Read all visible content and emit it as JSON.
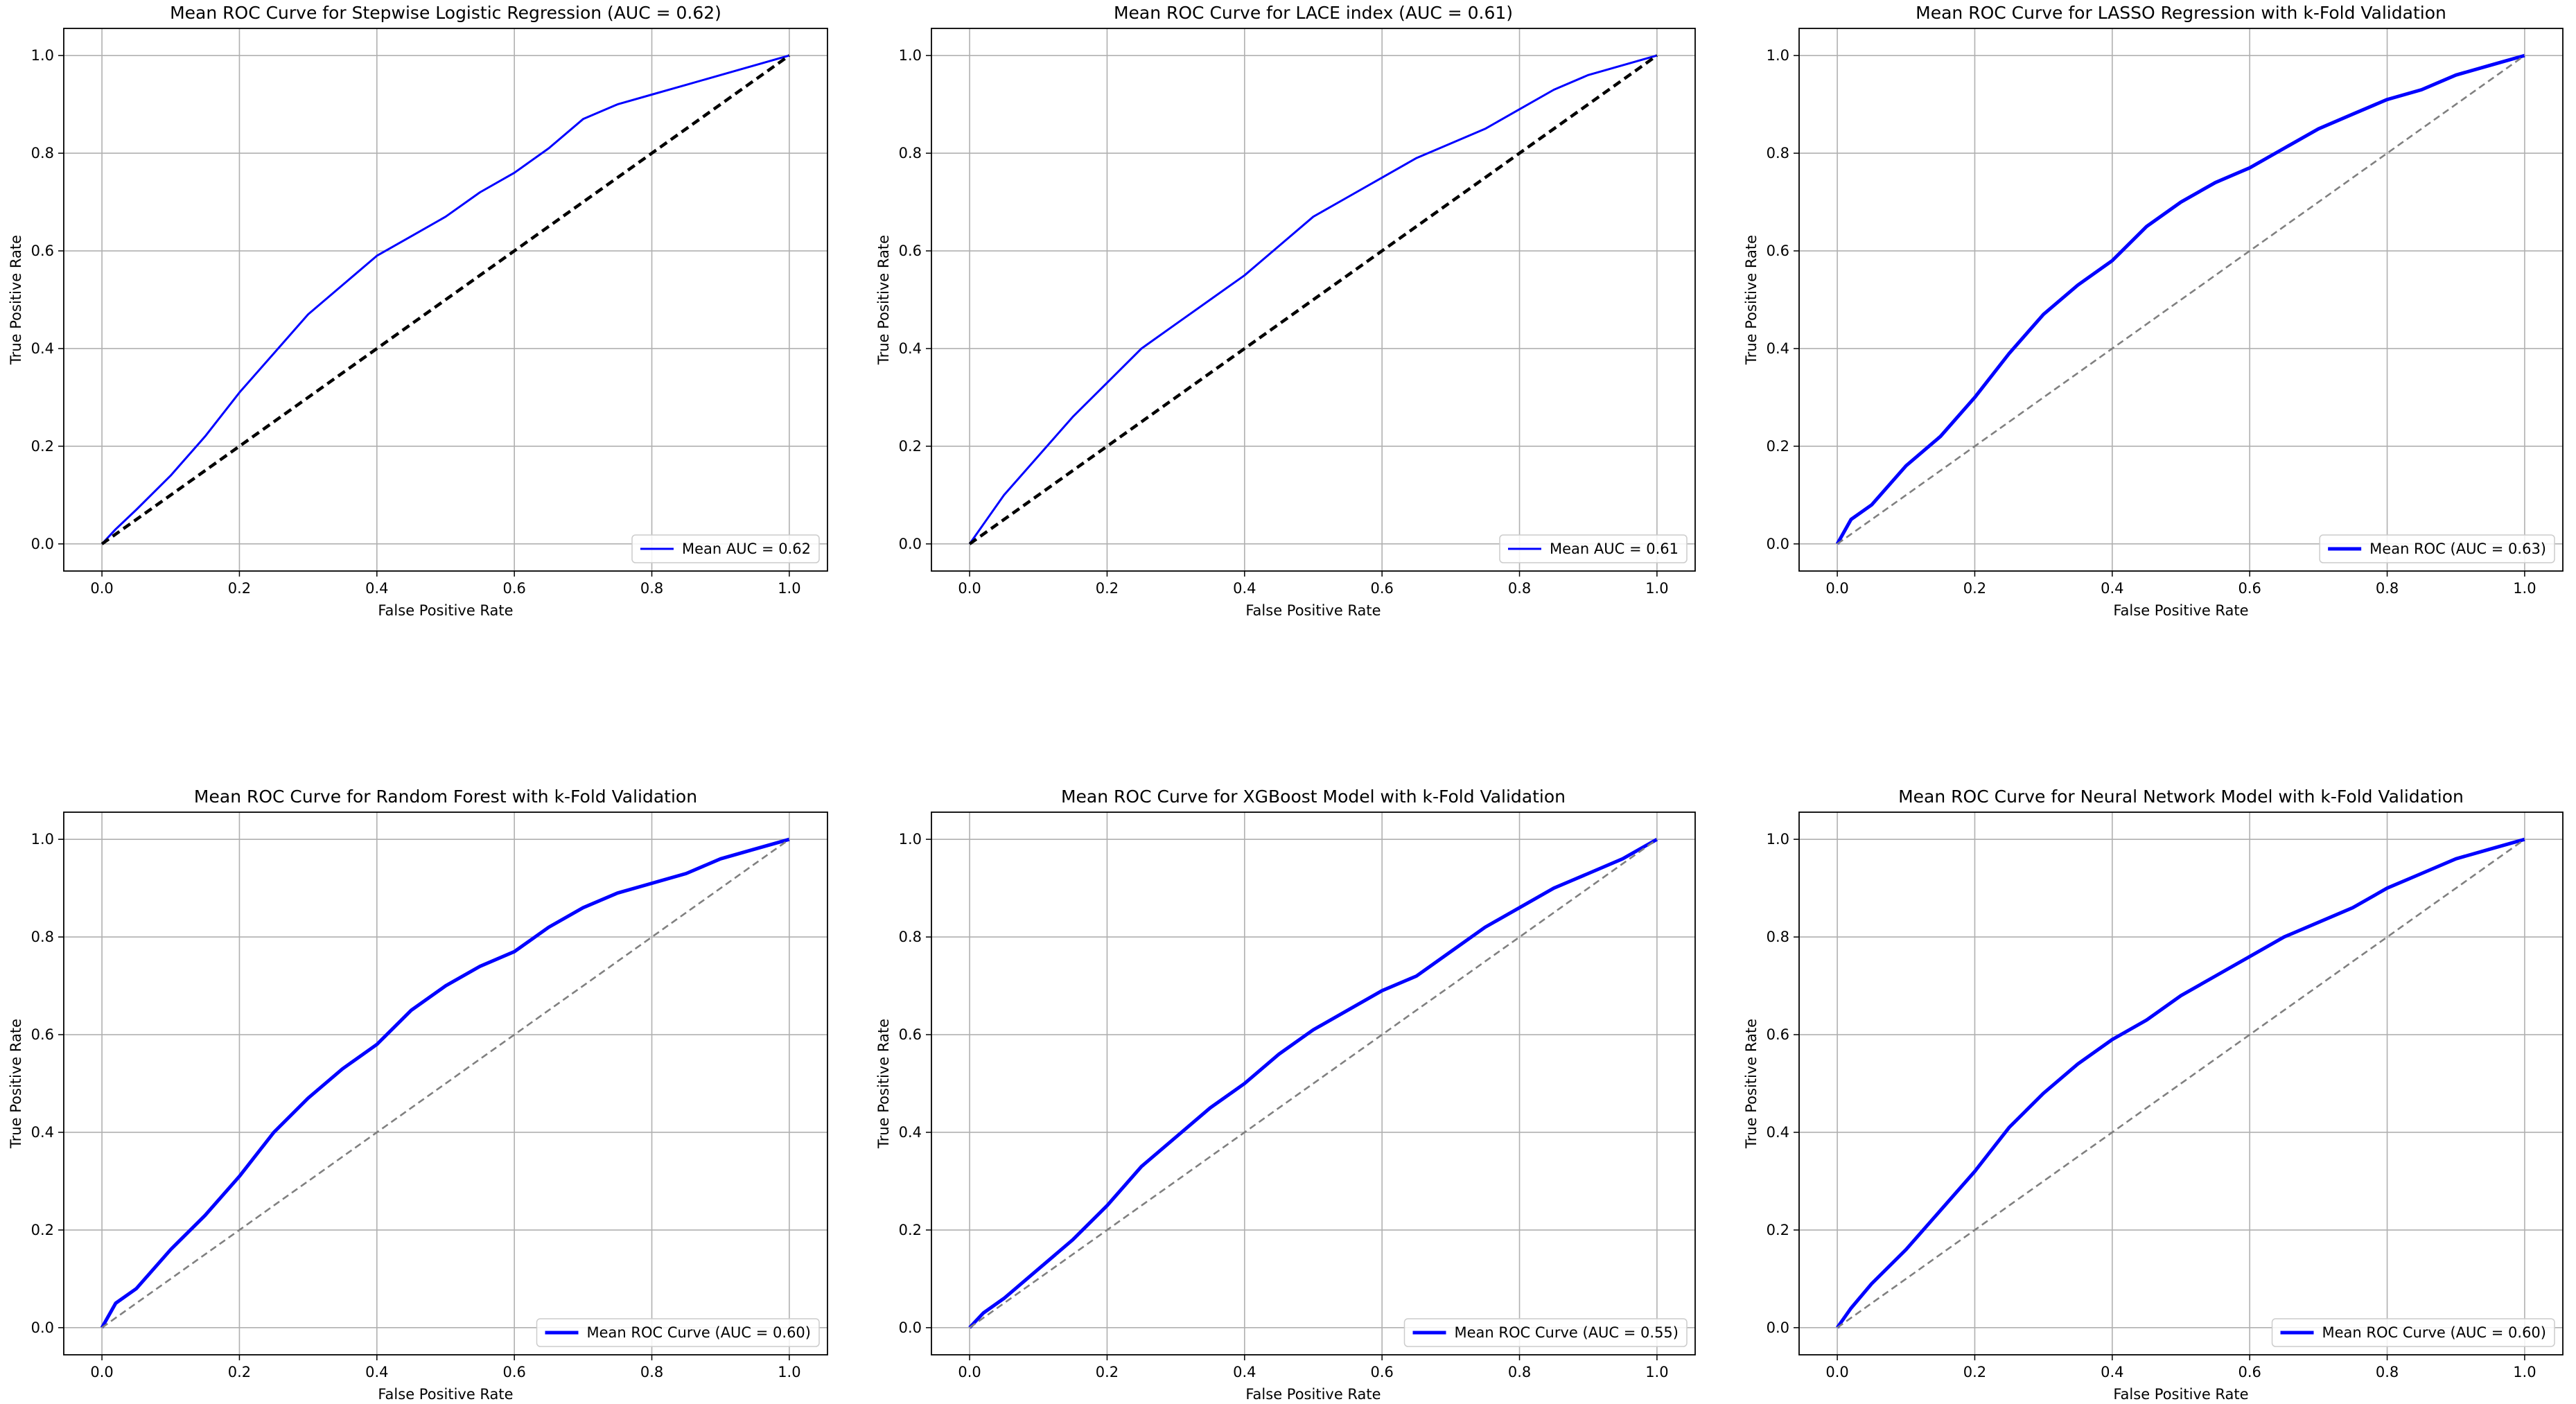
{
  "chart_data": [
    {
      "type": "line",
      "title": "Mean ROC Curve for Stepwise Logistic Regression (AUC = 0.62)",
      "xlabel": "False Positive Rate",
      "ylabel": "True Positive Rate",
      "xlim": [
        0.0,
        1.0
      ],
      "ylim": [
        0.0,
        1.0
      ],
      "xticks": [
        "0.0",
        "0.2",
        "0.4",
        "0.6",
        "0.8",
        "1.0"
      ],
      "yticks": [
        "0.0",
        "0.2",
        "0.4",
        "0.6",
        "0.8",
        "1.0"
      ],
      "grid": true,
      "legend_position": "lower-right",
      "series": [
        {
          "name": "Mean AUC = 0.62",
          "color": "#0000ff",
          "style": "solid",
          "x": [
            0.0,
            0.02,
            0.05,
            0.1,
            0.15,
            0.2,
            0.25,
            0.3,
            0.35,
            0.4,
            0.45,
            0.5,
            0.55,
            0.6,
            0.65,
            0.7,
            0.75,
            0.8,
            0.85,
            0.9,
            0.95,
            1.0
          ],
          "y": [
            0.0,
            0.03,
            0.07,
            0.14,
            0.22,
            0.31,
            0.39,
            0.47,
            0.53,
            0.59,
            0.63,
            0.67,
            0.72,
            0.76,
            0.81,
            0.87,
            0.9,
            0.92,
            0.94,
            0.96,
            0.98,
            1.0
          ]
        },
        {
          "name": "",
          "color": "#000000",
          "style": "dashed",
          "x": [
            0.0,
            1.0
          ],
          "y": [
            0.0,
            1.0
          ]
        }
      ]
    },
    {
      "type": "line",
      "title": "Mean ROC Curve for LACE index (AUC = 0.61)",
      "xlabel": "False Positive Rate",
      "ylabel": "True Positive Rate",
      "xlim": [
        0.0,
        1.0
      ],
      "ylim": [
        0.0,
        1.0
      ],
      "xticks": [
        "0.0",
        "0.2",
        "0.4",
        "0.6",
        "0.8",
        "1.0"
      ],
      "yticks": [
        "0.0",
        "0.2",
        "0.4",
        "0.6",
        "0.8",
        "1.0"
      ],
      "grid": true,
      "legend_position": "lower-right",
      "series": [
        {
          "name": "Mean AUC = 0.61",
          "color": "#0000ff",
          "style": "solid",
          "x": [
            0.0,
            0.02,
            0.05,
            0.1,
            0.15,
            0.2,
            0.25,
            0.3,
            0.35,
            0.4,
            0.45,
            0.5,
            0.55,
            0.6,
            0.65,
            0.7,
            0.75,
            0.8,
            0.85,
            0.9,
            0.95,
            1.0
          ],
          "y": [
            0.0,
            0.04,
            0.1,
            0.18,
            0.26,
            0.33,
            0.4,
            0.45,
            0.5,
            0.55,
            0.61,
            0.67,
            0.71,
            0.75,
            0.79,
            0.82,
            0.85,
            0.89,
            0.93,
            0.96,
            0.98,
            1.0
          ]
        },
        {
          "name": "",
          "color": "#000000",
          "style": "dashed",
          "x": [
            0.0,
            1.0
          ],
          "y": [
            0.0,
            1.0
          ]
        }
      ]
    },
    {
      "type": "line",
      "title": "Mean ROC Curve for LASSO Regression with k-Fold Validation",
      "xlabel": "False Positive Rate",
      "ylabel": "True Positive Rate",
      "xlim": [
        0.0,
        1.0
      ],
      "ylim": [
        0.0,
        1.0
      ],
      "xticks": [
        "0.0",
        "0.2",
        "0.4",
        "0.6",
        "0.8",
        "1.0"
      ],
      "yticks": [
        "0.0",
        "0.2",
        "0.4",
        "0.6",
        "0.8",
        "1.0"
      ],
      "grid": true,
      "legend_position": "lower-right",
      "series": [
        {
          "name": "Mean ROC (AUC = 0.63)",
          "color": "#0000ff",
          "style": "thick",
          "x": [
            0.0,
            0.02,
            0.05,
            0.1,
            0.15,
            0.2,
            0.25,
            0.3,
            0.35,
            0.4,
            0.45,
            0.5,
            0.55,
            0.6,
            0.65,
            0.7,
            0.75,
            0.8,
            0.85,
            0.9,
            0.95,
            1.0
          ],
          "y": [
            0.0,
            0.05,
            0.08,
            0.16,
            0.22,
            0.3,
            0.39,
            0.47,
            0.53,
            0.58,
            0.65,
            0.7,
            0.74,
            0.77,
            0.81,
            0.85,
            0.88,
            0.91,
            0.93,
            0.96,
            0.98,
            1.0
          ]
        },
        {
          "name": "",
          "color": "#808080",
          "style": "dashed",
          "x": [
            0.0,
            1.0
          ],
          "y": [
            0.0,
            1.0
          ]
        }
      ]
    },
    {
      "type": "line",
      "title": "Mean ROC Curve for Random Forest with k-Fold Validation",
      "xlabel": "False Positive Rate",
      "ylabel": "True Positive Rate",
      "xlim": [
        0.0,
        1.0
      ],
      "ylim": [
        0.0,
        1.0
      ],
      "xticks": [
        "0.0",
        "0.2",
        "0.4",
        "0.6",
        "0.8",
        "1.0"
      ],
      "yticks": [
        "0.0",
        "0.2",
        "0.4",
        "0.6",
        "0.8",
        "1.0"
      ],
      "grid": true,
      "legend_position": "lower-right",
      "series": [
        {
          "name": "Mean ROC Curve (AUC = 0.60)",
          "color": "#0000ff",
          "style": "thick",
          "x": [
            0.0,
            0.02,
            0.05,
            0.1,
            0.15,
            0.2,
            0.25,
            0.3,
            0.35,
            0.4,
            0.45,
            0.5,
            0.55,
            0.6,
            0.65,
            0.7,
            0.75,
            0.8,
            0.85,
            0.9,
            0.95,
            1.0
          ],
          "y": [
            0.0,
            0.05,
            0.08,
            0.16,
            0.23,
            0.31,
            0.4,
            0.47,
            0.53,
            0.58,
            0.65,
            0.7,
            0.74,
            0.77,
            0.82,
            0.86,
            0.89,
            0.91,
            0.93,
            0.96,
            0.98,
            1.0
          ]
        },
        {
          "name": "",
          "color": "#808080",
          "style": "dashed",
          "x": [
            0.0,
            1.0
          ],
          "y": [
            0.0,
            1.0
          ]
        }
      ]
    },
    {
      "type": "line",
      "title": "Mean ROC Curve for XGBoost Model with k-Fold Validation",
      "xlabel": "False Positive Rate",
      "ylabel": "True Positive Rate",
      "xlim": [
        0.0,
        1.0
      ],
      "ylim": [
        0.0,
        1.0
      ],
      "xticks": [
        "0.0",
        "0.2",
        "0.4",
        "0.6",
        "0.8",
        "1.0"
      ],
      "yticks": [
        "0.0",
        "0.2",
        "0.4",
        "0.6",
        "0.8",
        "1.0"
      ],
      "grid": true,
      "legend_position": "lower-right",
      "series": [
        {
          "name": "Mean ROC Curve (AUC = 0.55)",
          "color": "#0000ff",
          "style": "thick",
          "x": [
            0.0,
            0.02,
            0.05,
            0.1,
            0.15,
            0.2,
            0.25,
            0.3,
            0.35,
            0.4,
            0.45,
            0.5,
            0.55,
            0.6,
            0.65,
            0.7,
            0.75,
            0.8,
            0.85,
            0.9,
            0.95,
            1.0
          ],
          "y": [
            0.0,
            0.03,
            0.06,
            0.12,
            0.18,
            0.25,
            0.33,
            0.39,
            0.45,
            0.5,
            0.56,
            0.61,
            0.65,
            0.69,
            0.72,
            0.77,
            0.82,
            0.86,
            0.9,
            0.93,
            0.96,
            1.0
          ]
        },
        {
          "name": "",
          "color": "#808080",
          "style": "dashed",
          "x": [
            0.0,
            1.0
          ],
          "y": [
            0.0,
            1.0
          ]
        }
      ]
    },
    {
      "type": "line",
      "title": "Mean ROC Curve for Neural Network Model with k-Fold Validation",
      "xlabel": "False Positive Rate",
      "ylabel": "True Positive Rate",
      "xlim": [
        0.0,
        1.0
      ],
      "ylim": [
        0.0,
        1.0
      ],
      "xticks": [
        "0.0",
        "0.2",
        "0.4",
        "0.6",
        "0.8",
        "1.0"
      ],
      "yticks": [
        "0.0",
        "0.2",
        "0.4",
        "0.6",
        "0.8",
        "1.0"
      ],
      "grid": true,
      "legend_position": "lower-right",
      "series": [
        {
          "name": "Mean ROC Curve (AUC = 0.60)",
          "color": "#0000ff",
          "style": "thick",
          "x": [
            0.0,
            0.02,
            0.05,
            0.1,
            0.15,
            0.2,
            0.25,
            0.3,
            0.35,
            0.4,
            0.45,
            0.5,
            0.55,
            0.6,
            0.65,
            0.7,
            0.75,
            0.8,
            0.85,
            0.9,
            0.95,
            1.0
          ],
          "y": [
            0.0,
            0.04,
            0.09,
            0.16,
            0.24,
            0.32,
            0.41,
            0.48,
            0.54,
            0.59,
            0.63,
            0.68,
            0.72,
            0.76,
            0.8,
            0.83,
            0.86,
            0.9,
            0.93,
            0.96,
            0.98,
            1.0
          ]
        },
        {
          "name": "",
          "color": "#808080",
          "style": "dashed",
          "x": [
            0.0,
            1.0
          ],
          "y": [
            0.0,
            1.0
          ]
        }
      ]
    }
  ]
}
